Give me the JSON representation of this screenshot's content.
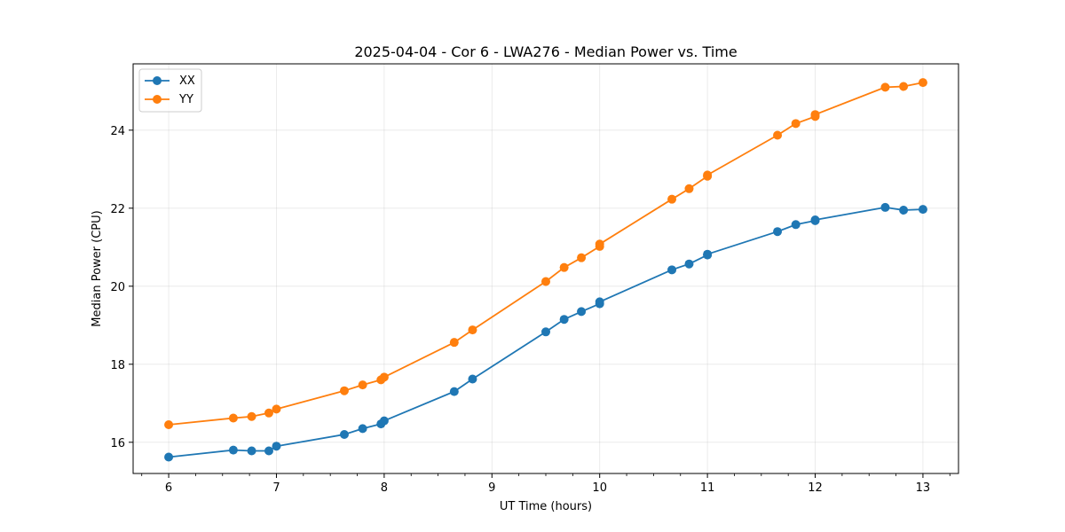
{
  "chart_data": {
    "type": "line",
    "title": "2025-04-04 - Cor 6 - LWA276 - Median Power vs. Time",
    "xlabel": "UT Time (hours)",
    "ylabel": "Median Power (CPU)",
    "xlim": [
      5.67,
      13.33
    ],
    "ylim": [
      15.2,
      25.7
    ],
    "xticks": [
      6,
      7,
      8,
      9,
      10,
      11,
      12,
      13
    ],
    "xtick_labels": [
      "6",
      "7",
      "8",
      "9",
      "10",
      "11",
      "12",
      "13"
    ],
    "yticks": [
      16,
      18,
      20,
      22,
      24
    ],
    "ytick_labels": [
      "16",
      "18",
      "20",
      "22",
      "24"
    ],
    "grid": true,
    "legend_position": "top-left",
    "series": [
      {
        "name": "XX",
        "color": "#1f77b4",
        "x": [
          6.0,
          6.6,
          6.77,
          6.93,
          7.0,
          7.63,
          7.8,
          7.97,
          8.0,
          8.65,
          8.82,
          9.5,
          9.67,
          9.83,
          10.0,
          10.0,
          10.67,
          10.83,
          11.0,
          11.0,
          11.65,
          11.82,
          12.0,
          12.0,
          12.65,
          12.82,
          13.0
        ],
        "values": [
          15.62,
          15.8,
          15.78,
          15.78,
          15.9,
          16.2,
          16.35,
          16.47,
          16.55,
          17.3,
          17.62,
          18.83,
          19.15,
          19.35,
          19.55,
          19.6,
          20.42,
          20.57,
          20.8,
          20.82,
          21.4,
          21.58,
          21.68,
          21.7,
          22.02,
          21.95,
          21.97
        ]
      },
      {
        "name": "YY",
        "color": "#ff7f0e",
        "x": [
          6.0,
          6.6,
          6.77,
          6.93,
          7.0,
          7.63,
          7.8,
          7.97,
          8.0,
          8.65,
          8.82,
          9.5,
          9.67,
          9.83,
          10.0,
          10.0,
          10.67,
          10.83,
          11.0,
          11.0,
          11.65,
          11.82,
          12.0,
          12.0,
          12.65,
          12.82,
          13.0
        ],
        "values": [
          16.45,
          16.62,
          16.66,
          16.75,
          16.85,
          17.32,
          17.47,
          17.6,
          17.67,
          18.56,
          18.88,
          20.12,
          20.48,
          20.73,
          21.02,
          21.08,
          22.23,
          22.5,
          22.82,
          22.85,
          23.87,
          24.17,
          24.35,
          24.4,
          25.1,
          25.12,
          25.22
        ]
      }
    ]
  }
}
